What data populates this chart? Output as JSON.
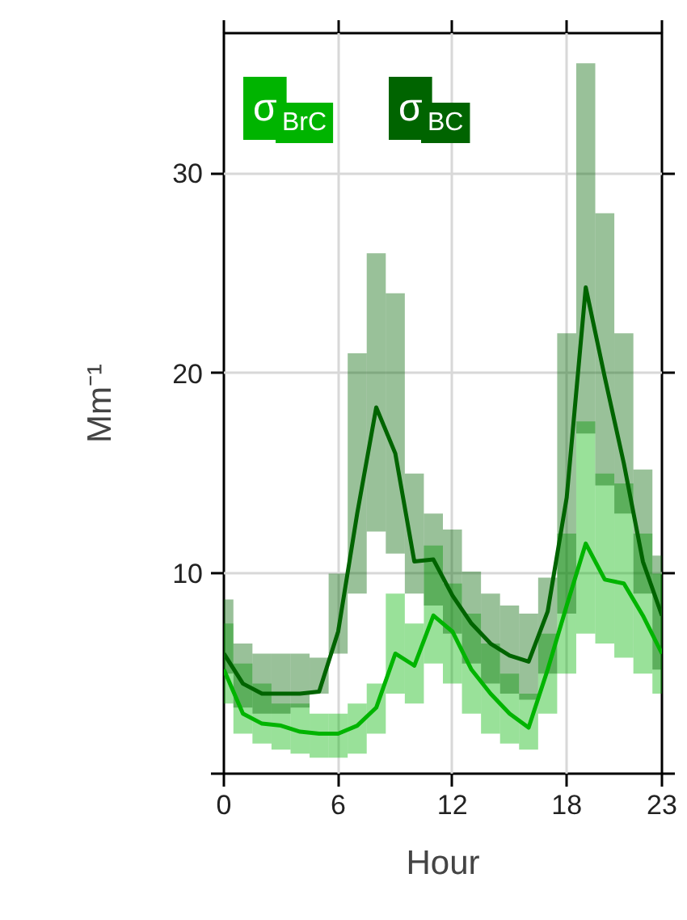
{
  "chart_data": {
    "type": "line",
    "xlabel": "Hour",
    "ylabel": "Mm⁻¹",
    "x": [
      0,
      1,
      2,
      3,
      4,
      5,
      6,
      7,
      8,
      9,
      10,
      11,
      12,
      13,
      14,
      15,
      16,
      17,
      18,
      19,
      20,
      21,
      22,
      23
    ],
    "xlim": [
      0,
      23
    ],
    "xticks": [
      0,
      6,
      12,
      18,
      23
    ],
    "ylim": [
      0,
      37
    ],
    "yticks": [
      {
        "value": 0,
        "label": null
      },
      10,
      20,
      30
    ],
    "grid": true,
    "marker": "none",
    "line_style": "solid",
    "series": [
      {
        "name": "σ$_{BrC}$",
        "color": "#00b400",
        "values": [
          5.2,
          3.0,
          2.5,
          2.4,
          2.1,
          2.0,
          2.0,
          2.4,
          3.3,
          6.0,
          5.4,
          7.9,
          7.1,
          5.2,
          4.0,
          3.0,
          2.3,
          5.2,
          8.4,
          11.5,
          9.7,
          9.5,
          7.9,
          6.0
        ],
        "lower": [
          3.5,
          2.0,
          1.5,
          1.2,
          1.0,
          0.8,
          0.8,
          1.0,
          2.0,
          4.0,
          3.5,
          5.5,
          4.5,
          3.0,
          2.0,
          1.5,
          1.2,
          3.0,
          5.0,
          7.0,
          6.5,
          5.8,
          5.0,
          4.0
        ],
        "upper": [
          7.5,
          5.5,
          4.5,
          3.5,
          3.5,
          3.0,
          3.0,
          3.5,
          4.5,
          9.0,
          7.5,
          11.4,
          9.5,
          8.0,
          6.5,
          5.0,
          4.0,
          7.0,
          12.0,
          17.6,
          15.0,
          14.5,
          12.0,
          10.0
        ]
      },
      {
        "name": "σ$_{BC}$",
        "color": "#006400",
        "values": [
          6.0,
          4.5,
          4.0,
          4.0,
          4.0,
          4.1,
          7.1,
          13.0,
          18.3,
          16.0,
          10.6,
          10.7,
          8.9,
          7.5,
          6.5,
          5.9,
          5.6,
          8.1,
          13.8,
          24.3,
          19.8,
          15.5,
          10.6,
          7.9
        ],
        "lower": [
          5.0,
          3.3,
          3.0,
          3.0,
          3.3,
          4.0,
          6.0,
          9.0,
          12.1,
          11.0,
          9.0,
          8.4,
          7.0,
          5.5,
          4.5,
          4.0,
          3.7,
          5.0,
          8.0,
          17.0,
          14.4,
          13.0,
          9.0,
          5.2
        ],
        "upper": [
          8.7,
          6.5,
          6.0,
          6.0,
          6.0,
          5.8,
          10.0,
          21.0,
          26.0,
          24.0,
          15.0,
          13.0,
          12.2,
          10.1,
          9.0,
          8.4,
          8.0,
          9.8,
          22.0,
          35.5,
          28.0,
          22.0,
          15.2,
          10.9
        ]
      }
    ]
  }
}
